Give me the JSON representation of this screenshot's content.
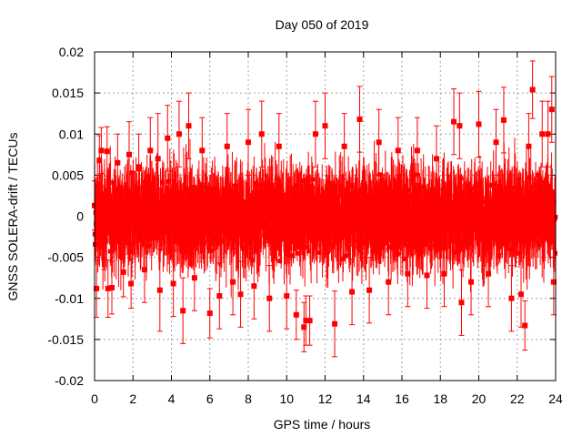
{
  "chart_data": {
    "type": "scatter",
    "title": "Day 050 of 2019",
    "xlabel": "GPS time / hours",
    "ylabel": "GNSS SOLERA-drift / TECUs",
    "xlim": [
      0,
      24
    ],
    "ylim": [
      -0.02,
      0.02
    ],
    "x_ticks": [
      "0",
      "2",
      "4",
      "6",
      "8",
      "10",
      "12",
      "14",
      "16",
      "18",
      "20",
      "22",
      "24"
    ],
    "y_ticks": [
      "0.02",
      "0.015",
      "0.01",
      "0.005",
      "0",
      "-0.005",
      "-0.01",
      "-0.015",
      "-0.02"
    ],
    "grid": true,
    "legend": "none",
    "series": [
      {
        "color": "#ff0000",
        "marker": "square",
        "error_bars": true,
        "points": [
          {
            "x": 0.0,
            "y": 0.0013,
            "err": 0.003
          },
          {
            "x": 0.1,
            "y": -0.0088,
            "err": 0.0035
          },
          {
            "x": 0.25,
            "y": 0.0068,
            "err": 0.003
          },
          {
            "x": 0.35,
            "y": 0.008,
            "err": 0.0028
          },
          {
            "x": 0.5,
            "y": -0.0025,
            "err": 0.004
          },
          {
            "x": 0.65,
            "y": 0.0079,
            "err": 0.003
          },
          {
            "x": 0.7,
            "y": -0.0088,
            "err": 0.0035
          },
          {
            "x": 0.9,
            "y": -0.0087,
            "err": 0.0032
          },
          {
            "x": 1.2,
            "y": 0.0065,
            "err": 0.0035
          },
          {
            "x": 1.5,
            "y": -0.0068,
            "err": 0.003
          },
          {
            "x": 1.8,
            "y": 0.0075,
            "err": 0.004
          },
          {
            "x": 1.9,
            "y": -0.0082,
            "err": 0.003
          },
          {
            "x": 2.3,
            "y": 0.006,
            "err": 0.004
          },
          {
            "x": 2.6,
            "y": -0.0065,
            "err": 0.004
          },
          {
            "x": 2.9,
            "y": 0.008,
            "err": 0.004
          },
          {
            "x": 3.3,
            "y": 0.007,
            "err": 0.0055
          },
          {
            "x": 3.4,
            "y": -0.009,
            "err": 0.005
          },
          {
            "x": 3.8,
            "y": 0.0095,
            "err": 0.004
          },
          {
            "x": 4.1,
            "y": -0.0082,
            "err": 0.004
          },
          {
            "x": 4.4,
            "y": 0.01,
            "err": 0.004
          },
          {
            "x": 4.6,
            "y": -0.0115,
            "err": 0.004
          },
          {
            "x": 4.9,
            "y": 0.011,
            "err": 0.004
          },
          {
            "x": 5.2,
            "y": -0.0075,
            "err": 0.004
          },
          {
            "x": 5.6,
            "y": 0.008,
            "err": 0.004
          },
          {
            "x": 6.0,
            "y": -0.0118,
            "err": 0.003
          },
          {
            "x": 6.5,
            "y": -0.0097,
            "err": 0.004
          },
          {
            "x": 6.9,
            "y": 0.0085,
            "err": 0.004
          },
          {
            "x": 7.2,
            "y": -0.008,
            "err": 0.004
          },
          {
            "x": 7.6,
            "y": -0.0095,
            "err": 0.004
          },
          {
            "x": 8.0,
            "y": 0.009,
            "err": 0.004
          },
          {
            "x": 8.3,
            "y": -0.0085,
            "err": 0.004
          },
          {
            "x": 8.7,
            "y": 0.01,
            "err": 0.004
          },
          {
            "x": 9.1,
            "y": -0.01,
            "err": 0.004
          },
          {
            "x": 9.6,
            "y": 0.0085,
            "err": 0.004
          },
          {
            "x": 10.0,
            "y": -0.0097,
            "err": 0.004
          },
          {
            "x": 10.5,
            "y": -0.012,
            "err": 0.003
          },
          {
            "x": 10.9,
            "y": -0.0135,
            "err": 0.003
          },
          {
            "x": 11.0,
            "y": -0.0127,
            "err": 0.003
          },
          {
            "x": 11.2,
            "y": -0.0127,
            "err": 0.003
          },
          {
            "x": 11.5,
            "y": 0.01,
            "err": 0.004
          },
          {
            "x": 12.0,
            "y": 0.011,
            "err": 0.004
          },
          {
            "x": 12.5,
            "y": -0.0131,
            "err": 0.004
          },
          {
            "x": 13.0,
            "y": 0.0085,
            "err": 0.004
          },
          {
            "x": 13.4,
            "y": -0.0092,
            "err": 0.004
          },
          {
            "x": 13.8,
            "y": 0.0118,
            "err": 0.004
          },
          {
            "x": 14.3,
            "y": -0.009,
            "err": 0.004
          },
          {
            "x": 14.8,
            "y": 0.009,
            "err": 0.004
          },
          {
            "x": 15.3,
            "y": -0.008,
            "err": 0.004
          },
          {
            "x": 15.8,
            "y": 0.008,
            "err": 0.004
          },
          {
            "x": 16.3,
            "y": -0.007,
            "err": 0.004
          },
          {
            "x": 16.8,
            "y": 0.008,
            "err": 0.004
          },
          {
            "x": 17.3,
            "y": -0.0072,
            "err": 0.004
          },
          {
            "x": 17.8,
            "y": 0.007,
            "err": 0.004
          },
          {
            "x": 18.2,
            "y": -0.007,
            "err": 0.004
          },
          {
            "x": 18.7,
            "y": 0.0115,
            "err": 0.004
          },
          {
            "x": 19.0,
            "y": 0.011,
            "err": 0.004
          },
          {
            "x": 19.1,
            "y": -0.0105,
            "err": 0.004
          },
          {
            "x": 19.6,
            "y": -0.008,
            "err": 0.004
          },
          {
            "x": 20.0,
            "y": 0.0112,
            "err": 0.004
          },
          {
            "x": 20.5,
            "y": -0.007,
            "err": 0.004
          },
          {
            "x": 20.9,
            "y": 0.009,
            "err": 0.004
          },
          {
            "x": 21.3,
            "y": 0.0117,
            "err": 0.004
          },
          {
            "x": 21.7,
            "y": -0.01,
            "err": 0.004
          },
          {
            "x": 22.2,
            "y": -0.0095,
            "err": 0.004
          },
          {
            "x": 22.4,
            "y": -0.0133,
            "err": 0.003
          },
          {
            "x": 22.6,
            "y": 0.0085,
            "err": 0.004
          },
          {
            "x": 22.8,
            "y": 0.0154,
            "err": 0.0035
          },
          {
            "x": 23.3,
            "y": 0.01,
            "err": 0.004
          },
          {
            "x": 23.6,
            "y": 0.01,
            "err": 0.004
          },
          {
            "x": 23.8,
            "y": 0.013,
            "err": 0.004
          },
          {
            "x": 23.9,
            "y": -0.008,
            "err": 0.004
          }
        ]
      }
    ]
  }
}
